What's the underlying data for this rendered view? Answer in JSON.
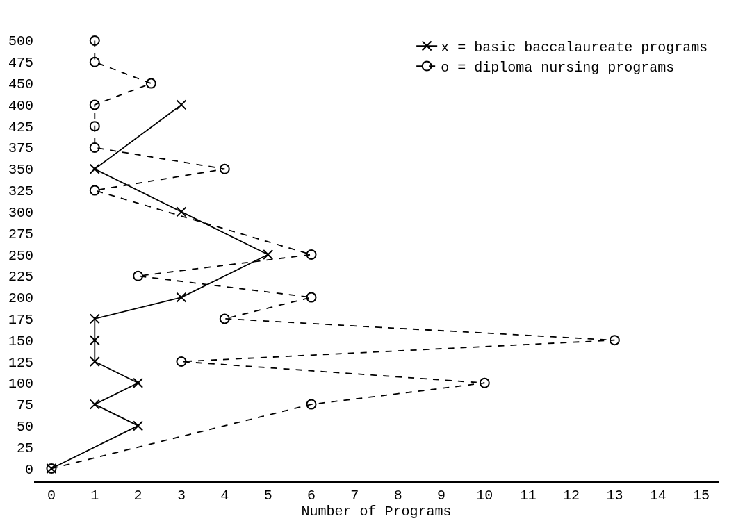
{
  "chart_data": {
    "type": "line",
    "orientation": "horizontal",
    "xlabel": "Number of Programs",
    "categories": [
      "500",
      "475",
      "450",
      "400",
      "425",
      "375",
      "350",
      "325",
      "300",
      "275",
      "250",
      "225",
      "200",
      "175",
      "150",
      "125",
      "100",
      "75",
      "50",
      "25",
      "0"
    ],
    "series": [
      {
        "name": "x = basic baccalaureate programs",
        "color": "#000000",
        "marker": "cross",
        "line_style": "solid",
        "values": [
          null,
          null,
          null,
          3,
          null,
          null,
          1,
          null,
          3,
          null,
          5,
          null,
          3,
          1,
          1,
          1,
          2,
          1,
          2,
          null,
          0
        ]
      },
      {
        "name": "o = diploma nursing programs",
        "color": "#000000",
        "marker": "circle",
        "line_style": "dashed",
        "values": [
          1,
          1,
          2.3,
          1,
          1,
          1,
          4,
          1,
          null,
          null,
          6,
          2,
          6,
          4,
          13,
          3,
          10,
          6,
          null,
          null,
          0
        ]
      }
    ],
    "xlim": [
      -0.4,
      15.4
    ],
    "xticks": [
      0,
      1,
      2,
      3,
      4,
      5,
      6,
      7,
      8,
      9,
      10,
      11,
      12,
      13,
      14,
      15
    ],
    "grid": false,
    "legend": "top right"
  }
}
